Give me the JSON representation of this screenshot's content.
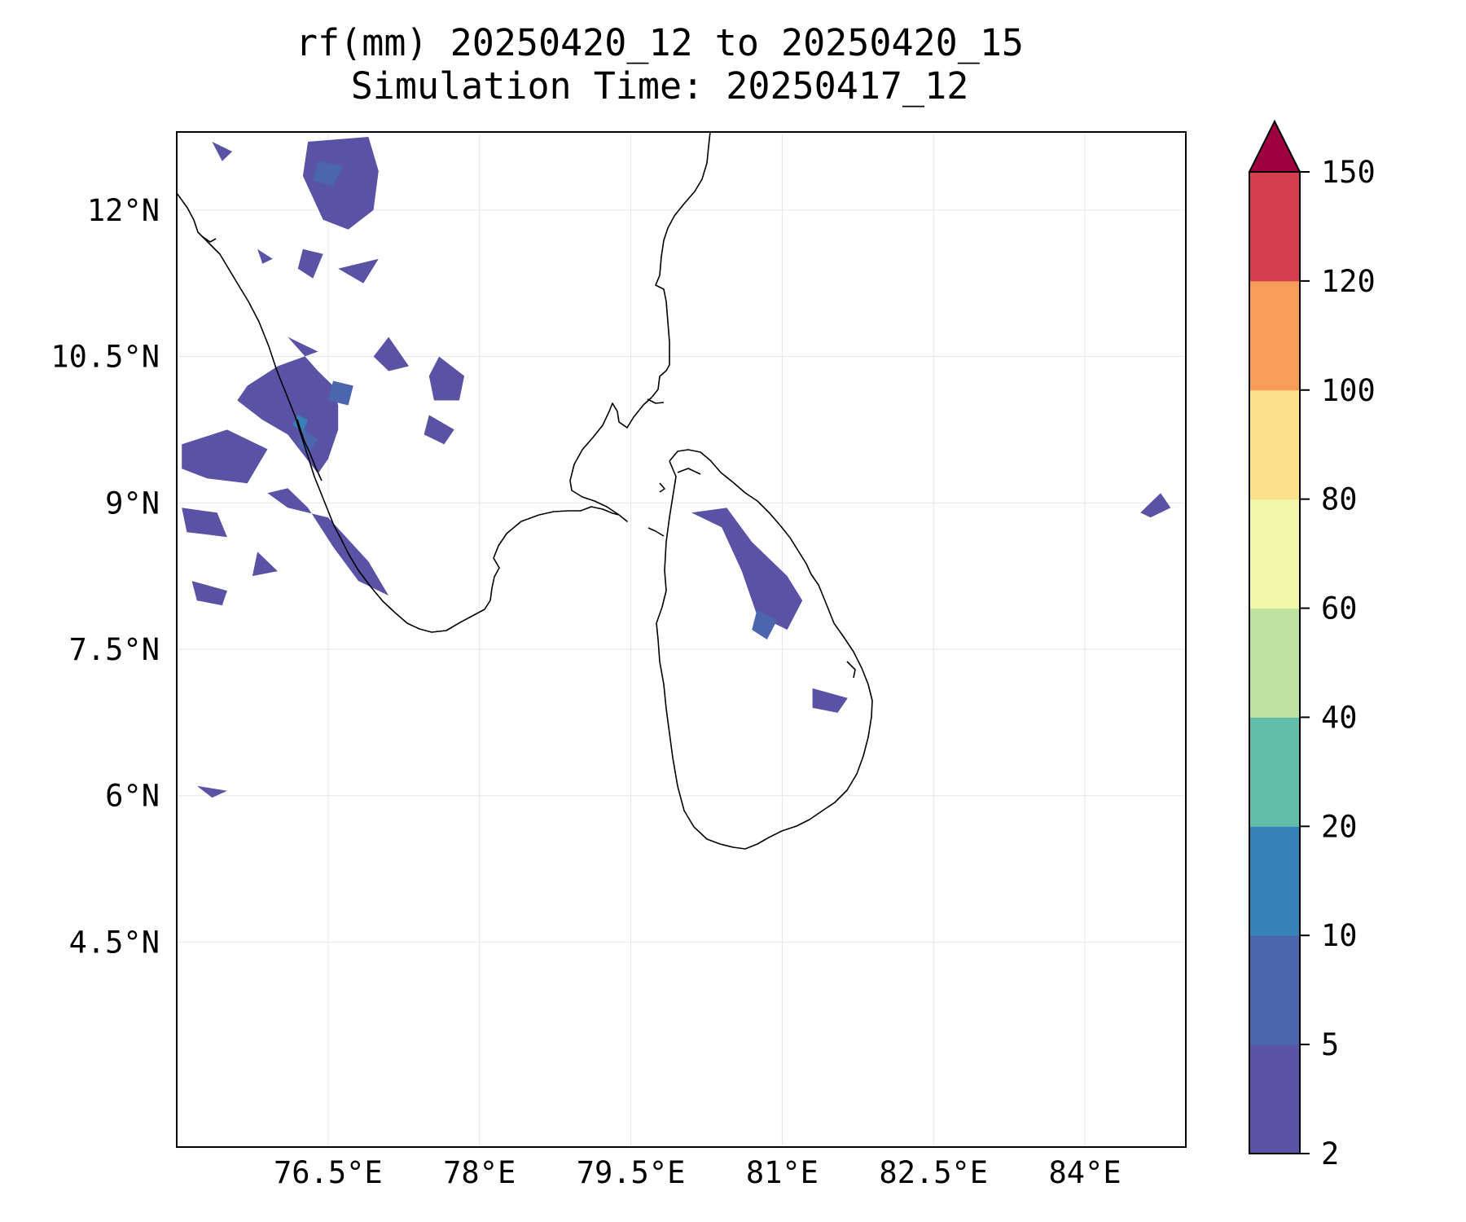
{
  "title": {
    "line1": "rf(mm) 20250420_12 to 20250420_15",
    "line2": "Simulation Time: 20250417_12"
  },
  "map": {
    "projection": "PlateCarree",
    "lon_range": [
      75,
      85
    ],
    "lat_range": [
      2.4,
      12.8
    ],
    "lon_ticks": [
      {
        "value": 76.5,
        "label": "76.5°E"
      },
      {
        "value": 78,
        "label": "78°E"
      },
      {
        "value": 79.5,
        "label": "79.5°E"
      },
      {
        "value": 81,
        "label": "81°E"
      },
      {
        "value": 82.5,
        "label": "82.5°E"
      },
      {
        "value": 84,
        "label": "84°E"
      }
    ],
    "lat_ticks": [
      {
        "value": 12,
        "label": "12°N"
      },
      {
        "value": 10.5,
        "label": "10.5°N"
      },
      {
        "value": 9,
        "label": "9°N"
      },
      {
        "value": 7.5,
        "label": "7.5°N"
      },
      {
        "value": 6,
        "label": "6°N"
      },
      {
        "value": 4.5,
        "label": "4.5°N"
      }
    ],
    "gridlines": true,
    "coastline_color": "#000000",
    "rain_patches": [
      {
        "cls": 1,
        "pts": [
          [
            76.3,
            12.7
          ],
          [
            76.9,
            12.75
          ],
          [
            77.0,
            12.4
          ],
          [
            76.95,
            12.0
          ],
          [
            76.7,
            11.8
          ],
          [
            76.45,
            11.9
          ],
          [
            76.25,
            12.35
          ]
        ]
      },
      {
        "cls": 1,
        "pts": [
          [
            75.35,
            12.7
          ],
          [
            75.55,
            12.6
          ],
          [
            75.45,
            12.5
          ]
        ]
      },
      {
        "cls": 1,
        "pts": [
          [
            75.8,
            11.6
          ],
          [
            75.95,
            11.5
          ],
          [
            75.85,
            11.45
          ]
        ]
      },
      {
        "cls": 1,
        "pts": [
          [
            76.25,
            11.6
          ],
          [
            76.45,
            11.55
          ],
          [
            76.35,
            11.3
          ],
          [
            76.2,
            11.4
          ]
        ]
      },
      {
        "cls": 1,
        "pts": [
          [
            76.6,
            11.4
          ],
          [
            77.0,
            11.5
          ],
          [
            76.85,
            11.25
          ]
        ]
      },
      {
        "cls": 1,
        "pts": [
          [
            76.1,
            10.7
          ],
          [
            76.4,
            10.55
          ],
          [
            76.0,
            10.4
          ],
          [
            75.7,
            10.2
          ],
          [
            75.6,
            10.05
          ],
          [
            75.85,
            9.85
          ],
          [
            76.1,
            9.7
          ],
          [
            76.25,
            9.5
          ],
          [
            76.4,
            9.3
          ],
          [
            76.5,
            9.45
          ],
          [
            76.6,
            9.75
          ],
          [
            76.6,
            10.0
          ],
          [
            76.55,
            10.2
          ],
          [
            76.4,
            10.35
          ]
        ]
      },
      {
        "cls": 1,
        "pts": [
          [
            75.05,
            9.6
          ],
          [
            75.5,
            9.75
          ],
          [
            75.9,
            9.55
          ],
          [
            75.7,
            9.2
          ],
          [
            75.3,
            9.25
          ],
          [
            75.05,
            9.35
          ]
        ]
      },
      {
        "cls": 1,
        "pts": [
          [
            75.9,
            9.1
          ],
          [
            76.1,
            9.15
          ],
          [
            76.3,
            8.95
          ],
          [
            76.55,
            8.55
          ],
          [
            76.8,
            8.2
          ],
          [
            77.1,
            8.05
          ],
          [
            76.9,
            8.4
          ],
          [
            76.5,
            8.85
          ],
          [
            76.1,
            8.95
          ]
        ]
      },
      {
        "cls": 1,
        "pts": [
          [
            75.05,
            8.95
          ],
          [
            75.4,
            8.9
          ],
          [
            75.5,
            8.65
          ],
          [
            75.1,
            8.7
          ]
        ]
      },
      {
        "cls": 1,
        "pts": [
          [
            75.15,
            8.2
          ],
          [
            75.5,
            8.1
          ],
          [
            75.45,
            7.95
          ],
          [
            75.2,
            8.0
          ]
        ]
      },
      {
        "cls": 1,
        "pts": [
          [
            75.8,
            8.5
          ],
          [
            76.0,
            8.3
          ],
          [
            75.75,
            8.25
          ]
        ]
      },
      {
        "cls": 1,
        "pts": [
          [
            77.1,
            10.7
          ],
          [
            77.3,
            10.4
          ],
          [
            77.1,
            10.35
          ],
          [
            76.95,
            10.5
          ]
        ]
      },
      {
        "cls": 1,
        "pts": [
          [
            77.6,
            10.5
          ],
          [
            77.85,
            10.3
          ],
          [
            77.8,
            10.05
          ],
          [
            77.55,
            10.05
          ],
          [
            77.5,
            10.3
          ]
        ]
      },
      {
        "cls": 1,
        "pts": [
          [
            77.5,
            9.9
          ],
          [
            77.75,
            9.75
          ],
          [
            77.65,
            9.6
          ],
          [
            77.45,
            9.7
          ]
        ]
      },
      {
        "cls": 1,
        "pts": [
          [
            80.1,
            8.9
          ],
          [
            80.4,
            8.75
          ],
          [
            80.6,
            8.3
          ],
          [
            80.75,
            7.85
          ],
          [
            81.05,
            7.7
          ],
          [
            81.2,
            8.0
          ],
          [
            81.05,
            8.25
          ],
          [
            80.7,
            8.6
          ],
          [
            80.45,
            8.95
          ]
        ]
      },
      {
        "cls": 1,
        "pts": [
          [
            81.3,
            7.1
          ],
          [
            81.65,
            7.0
          ],
          [
            81.55,
            6.85
          ],
          [
            81.3,
            6.9
          ]
        ]
      },
      {
        "cls": 1,
        "pts": [
          [
            84.55,
            8.9
          ],
          [
            84.75,
            9.1
          ],
          [
            84.85,
            8.95
          ],
          [
            84.65,
            8.85
          ]
        ]
      },
      {
        "cls": 1,
        "pts": [
          [
            75.2,
            6.1
          ],
          [
            75.5,
            6.05
          ],
          [
            75.35,
            5.98
          ]
        ]
      },
      {
        "cls": 2,
        "pts": [
          [
            76.4,
            12.5
          ],
          [
            76.65,
            12.45
          ],
          [
            76.55,
            12.25
          ],
          [
            76.35,
            12.3
          ]
        ]
      },
      {
        "cls": 2,
        "pts": [
          [
            76.55,
            10.25
          ],
          [
            76.75,
            10.2
          ],
          [
            76.7,
            10.0
          ],
          [
            76.5,
            10.05
          ]
        ]
      },
      {
        "cls": 2,
        "pts": [
          [
            76.25,
            9.75
          ],
          [
            76.4,
            9.65
          ],
          [
            76.3,
            9.5
          ],
          [
            76.2,
            9.6
          ]
        ]
      },
      {
        "cls": 2,
        "pts": [
          [
            80.75,
            7.9
          ],
          [
            80.95,
            7.8
          ],
          [
            80.85,
            7.6
          ],
          [
            80.7,
            7.7
          ]
        ]
      },
      {
        "cls": 3,
        "pts": [
          [
            76.2,
            9.9
          ],
          [
            76.3,
            9.85
          ],
          [
            76.25,
            9.72
          ],
          [
            76.15,
            9.8
          ]
        ]
      }
    ]
  },
  "colorbar": {
    "levels": [
      2,
      5,
      10,
      20,
      40,
      60,
      80,
      100,
      120,
      150
    ],
    "labels": [
      "2",
      "5",
      "10",
      "20",
      "40",
      "60",
      "80",
      "100",
      "120",
      "150"
    ],
    "colors": [
      "#5a52a4",
      "#4b65ae",
      "#3681b9",
      "#62bda8",
      "#bee3a0",
      "#f1f8aa",
      "#fde08b",
      "#f89d59",
      "#d53e4f"
    ],
    "extend_color": "#9d0142",
    "extend": "max"
  }
}
